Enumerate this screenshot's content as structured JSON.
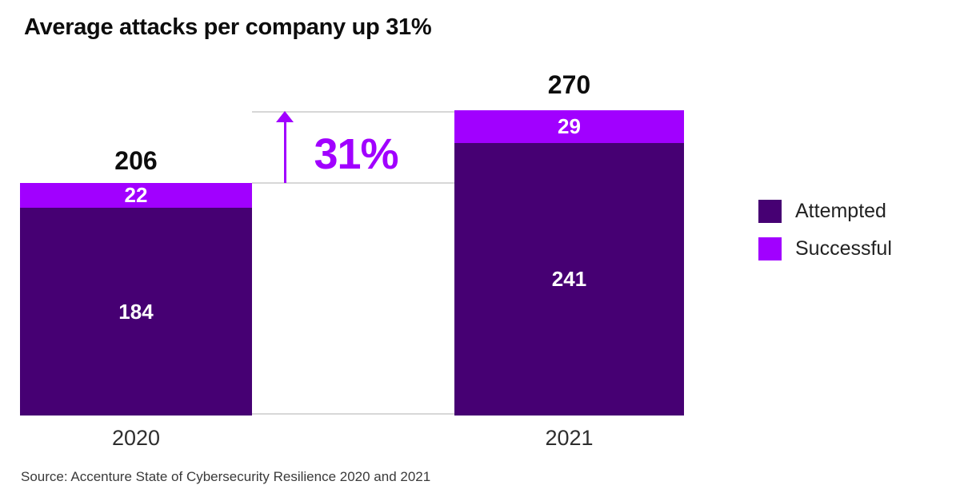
{
  "title": "Average attacks per company up 31%",
  "change": {
    "label": "31%"
  },
  "legend": [
    {
      "label": "Attempted",
      "color": "#460073"
    },
    {
      "label": "Successful",
      "color": "#a100ff"
    }
  ],
  "colors": {
    "attempted": "#460073",
    "successful": "#a100ff",
    "accent": "#a100ff",
    "step_line": "#d7d7d7",
    "title_text": "#0d0d0d"
  },
  "source": "Source: Accenture State of Cybersecurity Resilience 2020 and 2021",
  "chart_data": {
    "type": "bar",
    "subtype": "stacked",
    "title": "Average attacks per company up 31%",
    "categories": [
      "2020",
      "2021"
    ],
    "series": [
      {
        "name": "Attempted",
        "color": "#460073",
        "values": [
          184,
          241
        ]
      },
      {
        "name": "Successful",
        "color": "#a100ff",
        "values": [
          22,
          29
        ]
      }
    ],
    "totals": [
      206,
      270
    ],
    "annotation": {
      "text": "31%",
      "arrow": "up",
      "color": "#a100ff"
    },
    "xlabel": "",
    "ylabel": "",
    "grid": false,
    "legend_position": "right",
    "source": "Source: Accenture State of Cybersecurity Resilience 2020 and 2021"
  }
}
